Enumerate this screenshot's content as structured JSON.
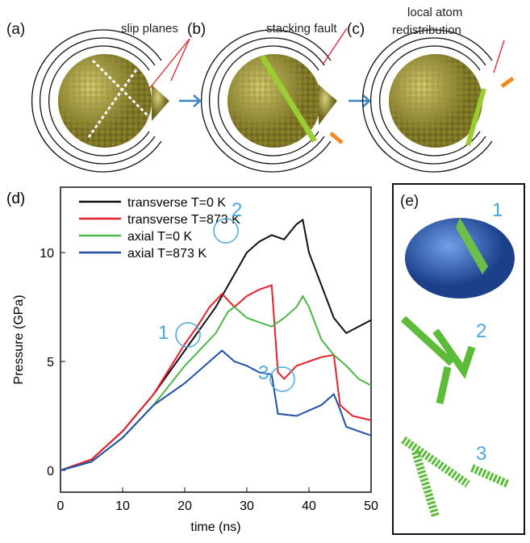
{
  "panels": {
    "a": "(a)",
    "b": "(b)",
    "c": "(c)",
    "e": "(e)"
  },
  "illustration_notes": {
    "a": "slip planes",
    "b": "stacking fault",
    "c1": "local atom",
    "c2": "redistribution"
  },
  "inset_labels": [
    "1",
    "2",
    "3"
  ],
  "chart_data": {
    "type": "line",
    "panel_label": "(d)",
    "x_label": "time (ns)",
    "y_label": "Pressure (GPa)",
    "xlim": [
      0,
      50
    ],
    "ylim": [
      -1,
      13
    ],
    "xticks": [
      0,
      10,
      20,
      30,
      40,
      50
    ],
    "yticks": [
      0,
      5,
      10
    ],
    "annotations": [
      "1",
      "2",
      "3"
    ],
    "series": [
      {
        "name": "transverse T=0 K",
        "color": "#111111",
        "x": [
          0,
          5,
          10,
          15,
          20,
          25,
          28,
          30,
          32,
          34,
          36,
          38,
          39,
          40,
          42,
          44,
          46,
          48,
          50
        ],
        "values": [
          0,
          0.5,
          1.8,
          3.5,
          5.5,
          7.5,
          9,
          10,
          10.5,
          10.8,
          10.6,
          11.3,
          11.5,
          10,
          8.5,
          7,
          6.3,
          6.6,
          6.9
        ]
      },
      {
        "name": "transverse T=873 K",
        "color": "#e8202a",
        "x": [
          0,
          5,
          10,
          15,
          20,
          22,
          24,
          26,
          28,
          30,
          32,
          34,
          35,
          36,
          38,
          40,
          42,
          44,
          45,
          47,
          50
        ],
        "values": [
          0,
          0.5,
          1.8,
          3.5,
          5.8,
          6.6,
          7.5,
          8.1,
          7.5,
          8,
          8.3,
          8.5,
          4.5,
          4.2,
          4.8,
          5,
          5.2,
          5.3,
          3,
          2.5,
          2.3
        ]
      },
      {
        "name": "axial T=0 K",
        "color": "#4cb848",
        "x": [
          0,
          5,
          10,
          15,
          20,
          25,
          27,
          28,
          30,
          32,
          34,
          36,
          38,
          39,
          40,
          42,
          44,
          46,
          48,
          50
        ],
        "values": [
          0,
          0.4,
          1.5,
          3,
          4.8,
          6.3,
          7.3,
          7.5,
          7,
          6.8,
          6.6,
          7,
          7.5,
          8,
          7.5,
          6,
          5.3,
          4.8,
          4.2,
          3.9
        ]
      },
      {
        "name": "axial T=873 K",
        "color": "#1f4fa8",
        "x": [
          0,
          5,
          10,
          15,
          20,
          24,
          26,
          28,
          30,
          32,
          34,
          35,
          38,
          42,
          44,
          45,
          46,
          48,
          50
        ],
        "values": [
          0,
          0.4,
          1.5,
          3,
          4,
          5,
          5.5,
          5,
          4.8,
          4.5,
          4.4,
          2.6,
          2.5,
          3,
          3.5,
          2.8,
          2,
          1.8,
          1.6
        ]
      }
    ]
  }
}
